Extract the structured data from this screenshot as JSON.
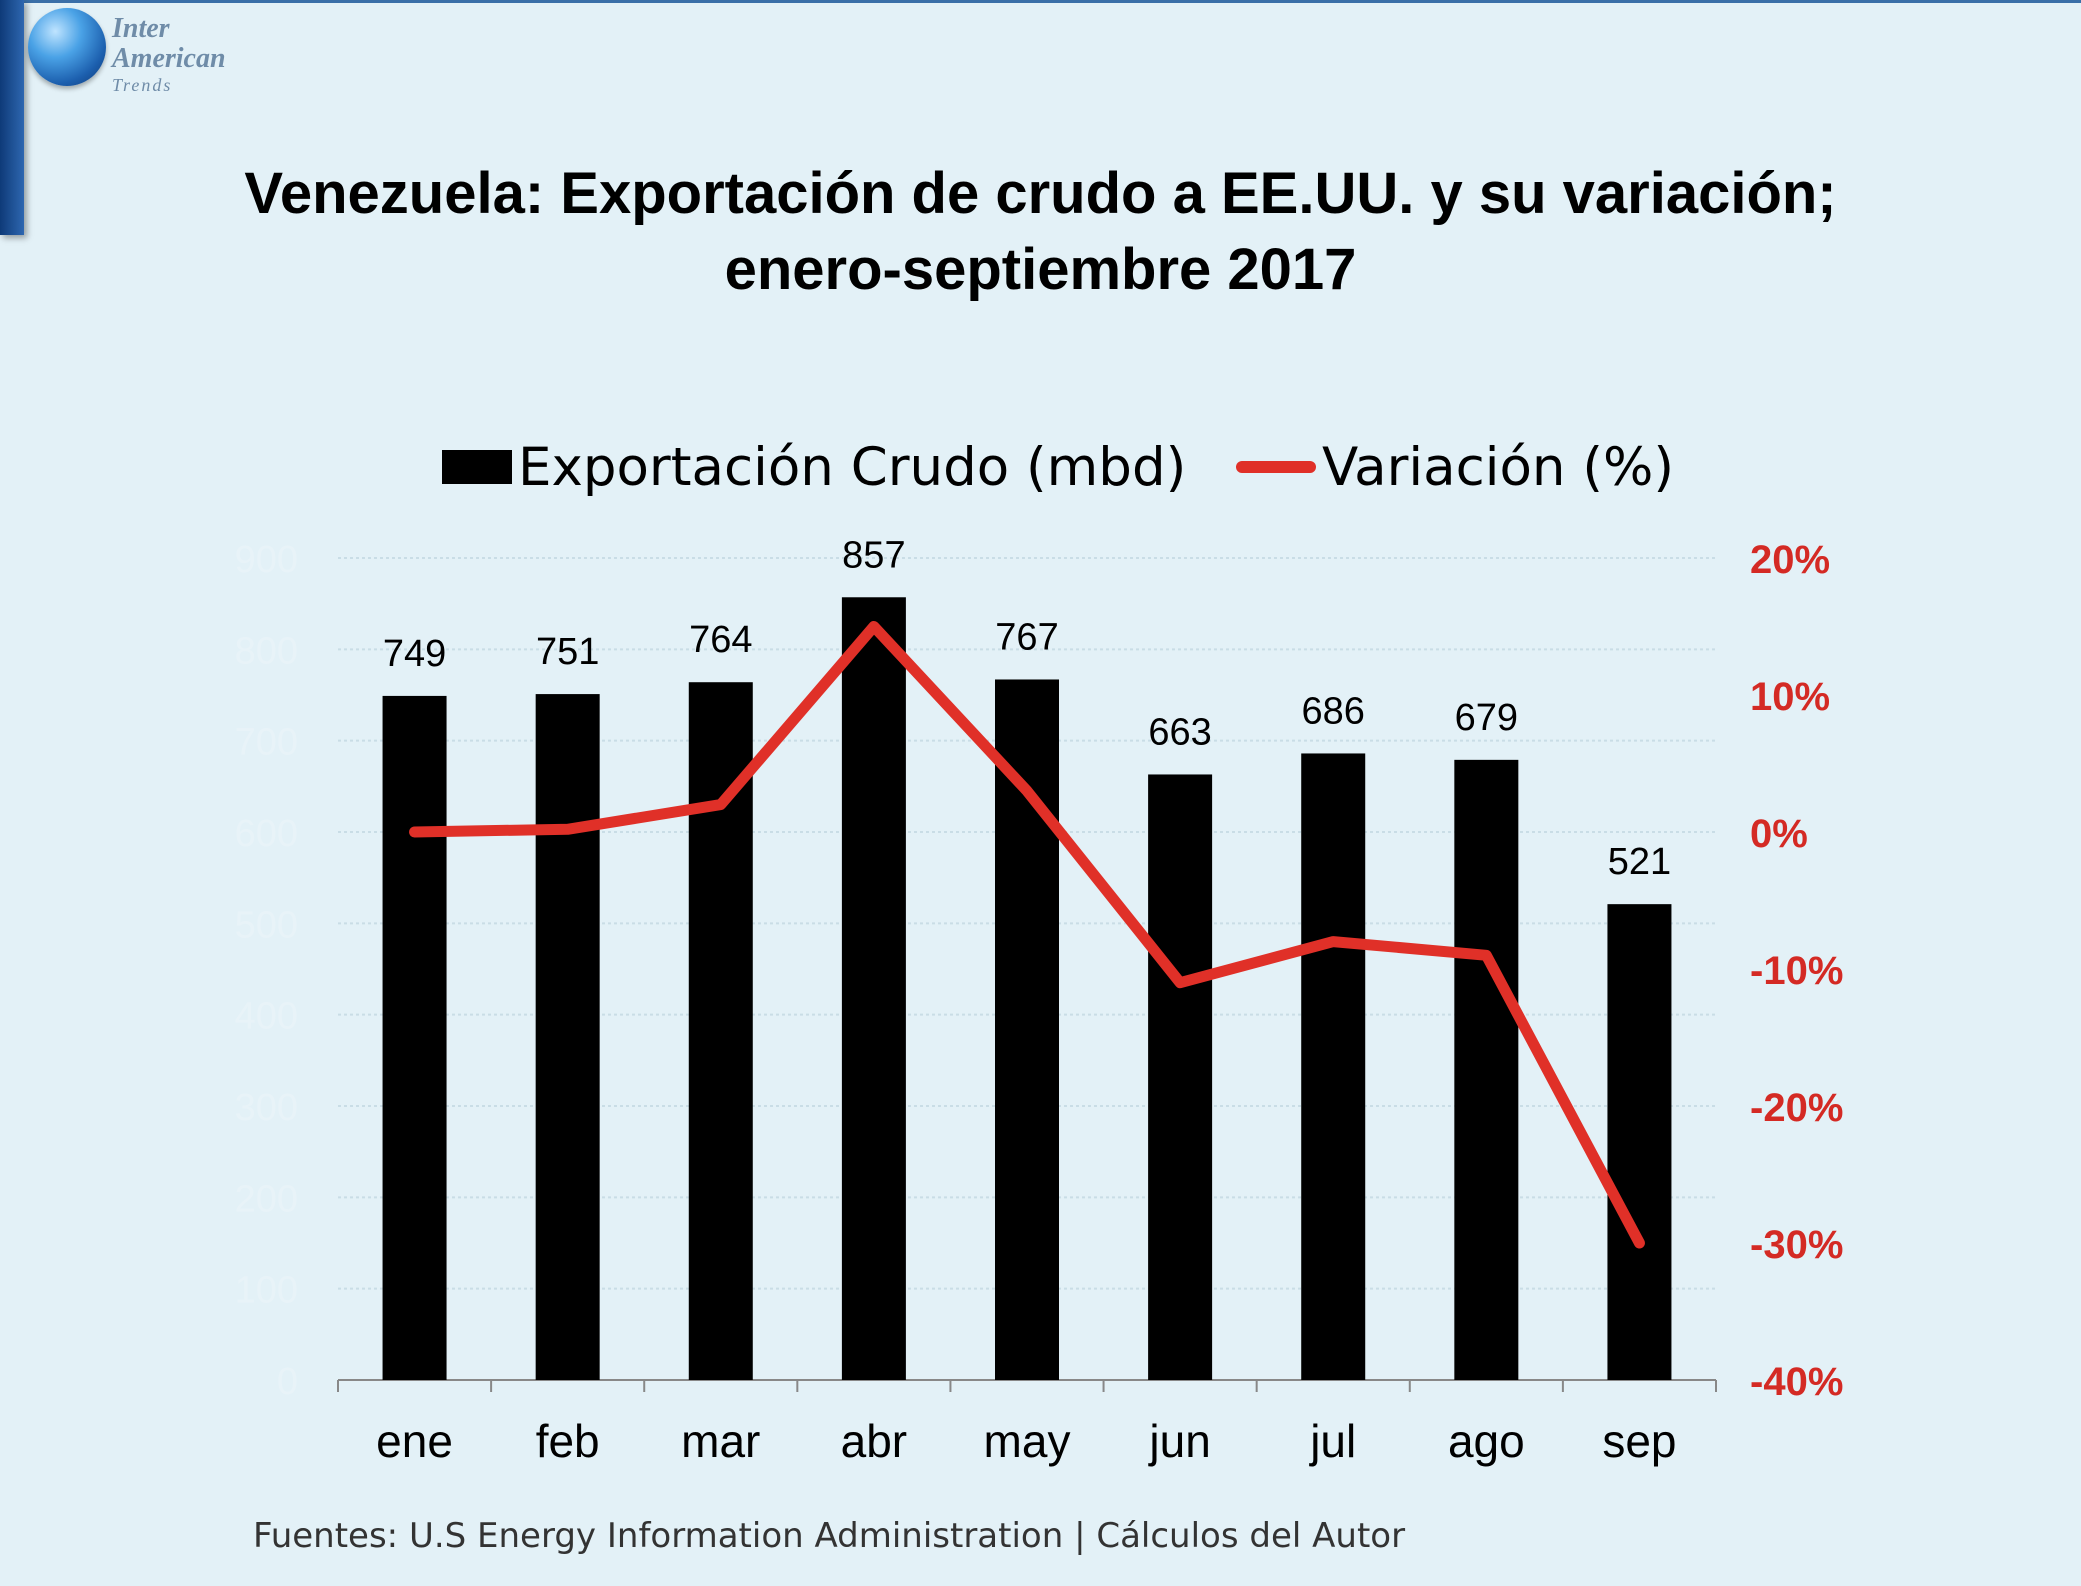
{
  "logo": {
    "line1": "Inter",
    "line2": "American",
    "line3": "Trends"
  },
  "title": {
    "line1": "Venezuela: Exportación de crudo a EE.UU. y  su variación;",
    "line2": "enero-septiembre 2017"
  },
  "legend": {
    "bar_label": "Exportación Crudo (mbd)",
    "line_label": "Variación (%)"
  },
  "footer": "Fuentes: U.S Energy Information Administration | Cálculos del Autor",
  "colors": {
    "bars": "#000000",
    "line": "#e03028",
    "right_axis": "#d42a24",
    "left_axis": "#e8f3f8",
    "background": "#e3f1f7"
  },
  "chart_data": {
    "type": "bar",
    "categories": [
      "ene",
      "feb",
      "mar",
      "abr",
      "may",
      "jun",
      "jul",
      "ago",
      "sep"
    ],
    "series": [
      {
        "name": "Exportación Crudo (mbd)",
        "type": "bar",
        "axis": "left",
        "values": [
          749,
          751,
          764,
          857,
          767,
          663,
          686,
          679,
          521
        ],
        "labels": [
          "749",
          "751",
          "764",
          "857",
          "767",
          "663",
          "686",
          "679",
          "521"
        ]
      },
      {
        "name": "Variación (%)",
        "type": "line",
        "axis": "right",
        "values": [
          0,
          0.2,
          2,
          15,
          3,
          -11,
          -8,
          -9,
          -30
        ]
      }
    ],
    "y_left": {
      "ylim": [
        0,
        900
      ],
      "ticks": [
        "0",
        "100",
        "200",
        "300",
        "400",
        "500",
        "600",
        "700",
        "800",
        "900"
      ]
    },
    "y_right": {
      "ylim": [
        -40,
        20
      ],
      "ticks": [
        "20%",
        "10%",
        "0%",
        "-10%",
        "-20%",
        "-30%",
        "-40%"
      ]
    },
    "grid": true,
    "legend_position": "top"
  }
}
